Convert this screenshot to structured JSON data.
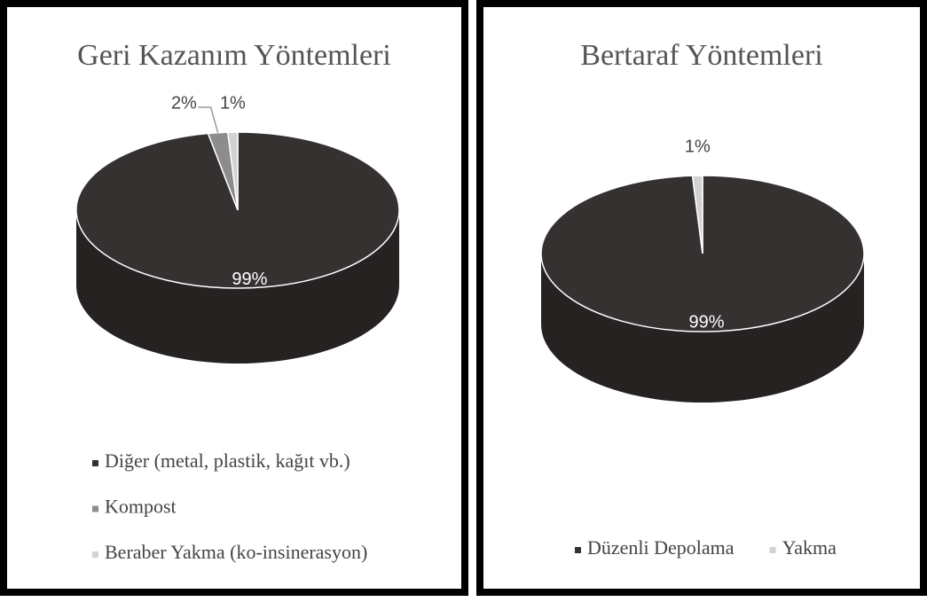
{
  "chart_data": [
    {
      "type": "pie",
      "title": "Geri Kazanım Yöntemleri",
      "categories": [
        "Diğer (metal, plastik, kağıt vb.)",
        "Kompost",
        "Beraber Yakma (ko-insinerasyon)"
      ],
      "values": [
        99,
        2,
        1
      ],
      "value_labels": [
        "99%",
        "2%",
        "1%"
      ],
      "colors": [
        "#363131",
        "#8c8c8c",
        "#d2d2d2"
      ],
      "legend": "bottom"
    },
    {
      "type": "pie",
      "title": "Bertaraf Yöntemleri",
      "categories": [
        "Düzenli Depolama",
        "Yakma"
      ],
      "values": [
        99,
        1
      ],
      "value_labels": [
        "99%",
        "1%"
      ],
      "colors": [
        "#363131",
        "#d2d2d2"
      ],
      "legend": "bottom"
    }
  ]
}
